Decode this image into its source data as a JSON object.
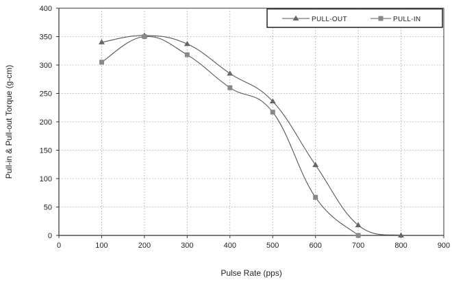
{
  "chart_data": {
    "type": "line",
    "xlabel": "Pulse Rate (pps)",
    "ylabel": "Pull-in & Pull-out Torque (g-cm)",
    "xlim": [
      0,
      900
    ],
    "ylim": [
      0,
      400
    ],
    "xticks": [
      0,
      100,
      200,
      300,
      400,
      500,
      600,
      700,
      800,
      900
    ],
    "yticks": [
      0,
      50,
      100,
      150,
      200,
      250,
      300,
      350,
      400
    ],
    "grid": "dotted",
    "legend_position": "top-right",
    "series": [
      {
        "name": "PULL-OUT",
        "marker": "triangle",
        "color": "#555555",
        "x": [
          100,
          200,
          300,
          400,
          500,
          600,
          700,
          800
        ],
        "y": [
          340,
          352,
          337,
          285,
          236,
          124,
          18,
          0
        ]
      },
      {
        "name": "PULL-IN",
        "marker": "square",
        "color": "#555555",
        "x": [
          100,
          200,
          300,
          400,
          500,
          600,
          700
        ],
        "y": [
          305,
          350,
          318,
          260,
          217,
          67,
          0
        ]
      }
    ]
  }
}
